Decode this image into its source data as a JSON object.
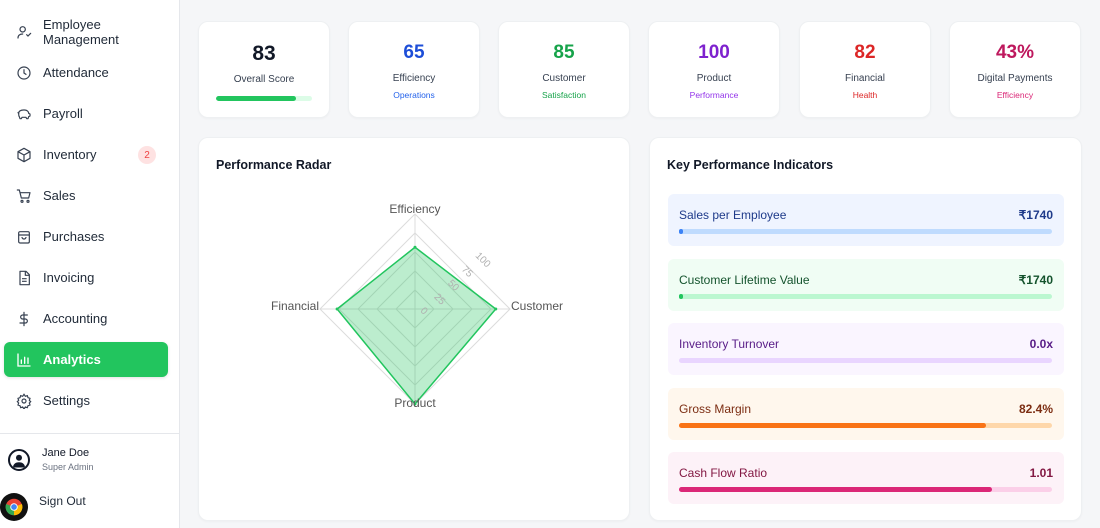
{
  "sidebar": {
    "items": [
      {
        "label": "Employee Management",
        "icon": "user-icon",
        "active": false,
        "badge": ""
      },
      {
        "label": "Attendance",
        "icon": "clock-icon",
        "active": false,
        "badge": ""
      },
      {
        "label": "Payroll",
        "icon": "piggy-bank-icon",
        "active": false,
        "badge": ""
      },
      {
        "label": "Inventory",
        "icon": "box-icon",
        "active": false,
        "badge": "2"
      },
      {
        "label": "Sales",
        "icon": "cart-icon",
        "active": false,
        "badge": ""
      },
      {
        "label": "Purchases",
        "icon": "bag-icon",
        "active": false,
        "badge": ""
      },
      {
        "label": "Invoicing",
        "icon": "file-icon",
        "active": false,
        "badge": ""
      },
      {
        "label": "Accounting",
        "icon": "dollar-icon",
        "active": false,
        "badge": ""
      },
      {
        "label": "Analytics",
        "icon": "bar-chart-icon",
        "active": true,
        "badge": ""
      },
      {
        "label": "Settings",
        "icon": "gear-icon",
        "active": false,
        "badge": ""
      }
    ],
    "user": {
      "name": "Jane Doe",
      "role": "Super Admin"
    },
    "signout_label": "Sign Out",
    "accent": "#22c55e"
  },
  "score_cards": [
    {
      "value": "83",
      "label": "Overall Score",
      "progress": 0.83,
      "color": "#111827"
    },
    {
      "value": "65",
      "label": "Efficiency",
      "sub": "Operations",
      "color": "#1d4ed8",
      "subcolor": "#2563eb"
    },
    {
      "value": "85",
      "label": "Customer",
      "sub": "Satisfaction",
      "color": "#16a34a",
      "subcolor": "#16a34a"
    },
    {
      "value": "100",
      "label": "Product",
      "sub": "Performance",
      "color": "#7e22ce",
      "subcolor": "#9333ea"
    },
    {
      "value": "82",
      "label": "Financial",
      "sub": "Health",
      "color": "#dc2626",
      "subcolor": "#dc2626"
    },
    {
      "value": "43%",
      "label": "Digital Payments",
      "sub": "Efficiency",
      "color": "#be185d",
      "subcolor": "#db2777"
    }
  ],
  "radar": {
    "title": "Performance Radar",
    "chart_data": {
      "type": "radar",
      "axes": [
        "Efficiency",
        "Customer",
        "Product",
        "Financial"
      ],
      "values": [
        65,
        85,
        100,
        82
      ],
      "ticks": [
        "0",
        "25",
        "50",
        "75",
        "100"
      ],
      "range": [
        0,
        100
      ],
      "fill_color": "#22c55e"
    }
  },
  "kpis": {
    "title": "Key Performance Indicators",
    "items": [
      {
        "name": "Sales per Employee",
        "value": "₹1740",
        "progress": 0.01,
        "bg": "#eff4ff",
        "text": "#1e3a8a",
        "track": "#bfdbfe",
        "fill": "#3b82f6"
      },
      {
        "name": "Customer Lifetime Value",
        "value": "₹1740",
        "progress": 0.01,
        "bg": "#f0fdf4",
        "text": "#14532d",
        "track": "#bbf7d0",
        "fill": "#22c55e"
      },
      {
        "name": "Inventory Turnover",
        "value": "0.0x",
        "progress": 0.0,
        "bg": "#faf5ff",
        "text": "#581c87",
        "track": "#e9d5ff",
        "fill": "#a855f7"
      },
      {
        "name": "Gross Margin",
        "value": "82.4%",
        "progress": 0.824,
        "bg": "#fff7ed",
        "text": "#7c2d12",
        "track": "#fed7aa",
        "fill": "#f97316"
      },
      {
        "name": "Cash Flow Ratio",
        "value": "1.01",
        "progress": 0.84,
        "bg": "#fdf2f8",
        "text": "#831843",
        "track": "#fbcfe8",
        "fill": "#db2777"
      }
    ]
  }
}
